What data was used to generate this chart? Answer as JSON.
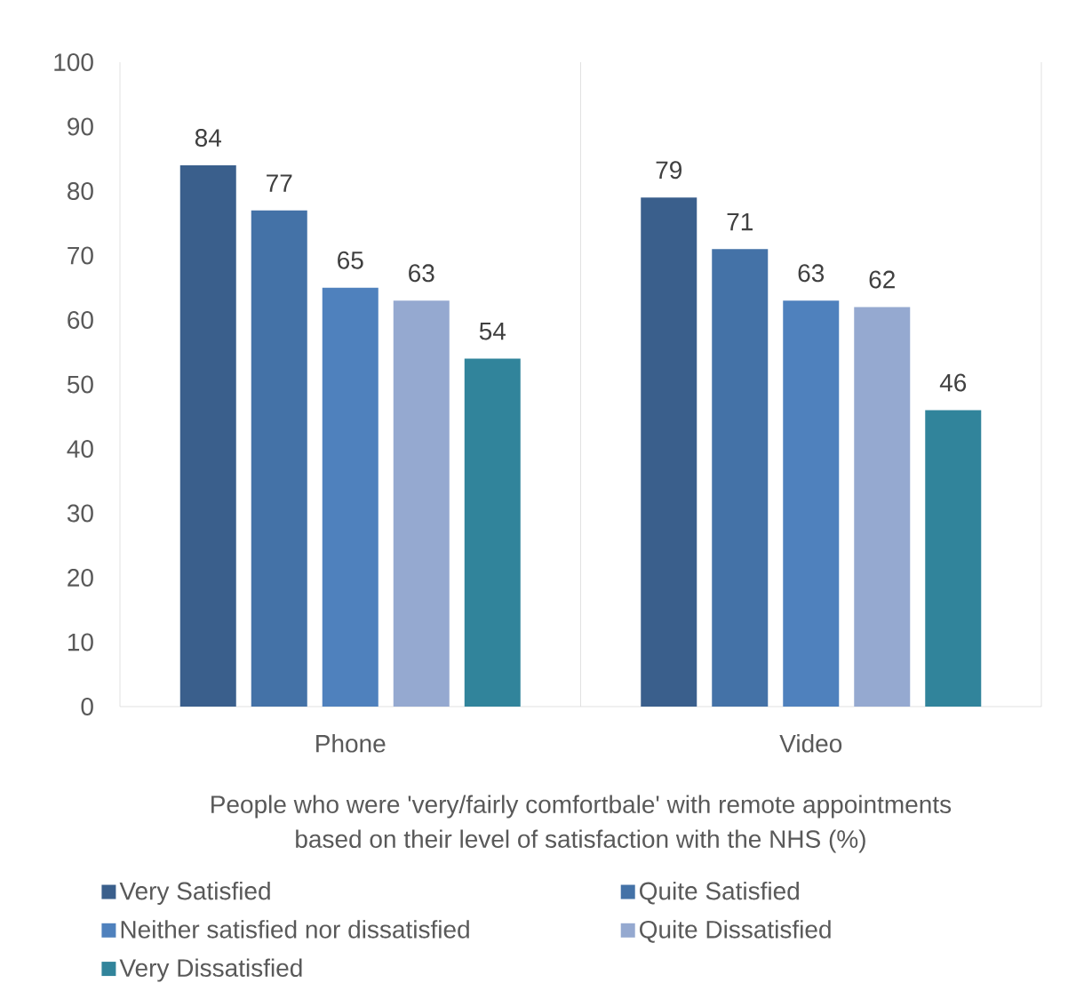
{
  "chart_data": {
    "type": "bar",
    "categories": [
      "Phone",
      "Video"
    ],
    "series": [
      {
        "name": "Very Satisfied",
        "color": "#3a5f8c",
        "values": [
          84,
          79
        ]
      },
      {
        "name": "Quite Satisfied",
        "color": "#4472a7",
        "values": [
          77,
          71
        ]
      },
      {
        "name": "Neither satisfied nor dissatisfied",
        "color": "#4f81bd",
        "values": [
          65,
          63
        ]
      },
      {
        "name": "Quite Dissatisfied",
        "color": "#95a9d0",
        "values": [
          63,
          62
        ]
      },
      {
        "name": "Very Dissatisfied",
        "color": "#31849b",
        "values": [
          54,
          46
        ]
      }
    ],
    "xlabel": "People who were 'very/fairly comfortbale' with remote appointments based on their level of satisfaction with the NHS (%)",
    "ylim": [
      0,
      100
    ],
    "yticks": [
      0,
      10,
      20,
      30,
      40,
      50,
      60,
      70,
      80,
      90,
      100
    ],
    "grid": "x",
    "legend": "bottom",
    "data_labels": true
  }
}
